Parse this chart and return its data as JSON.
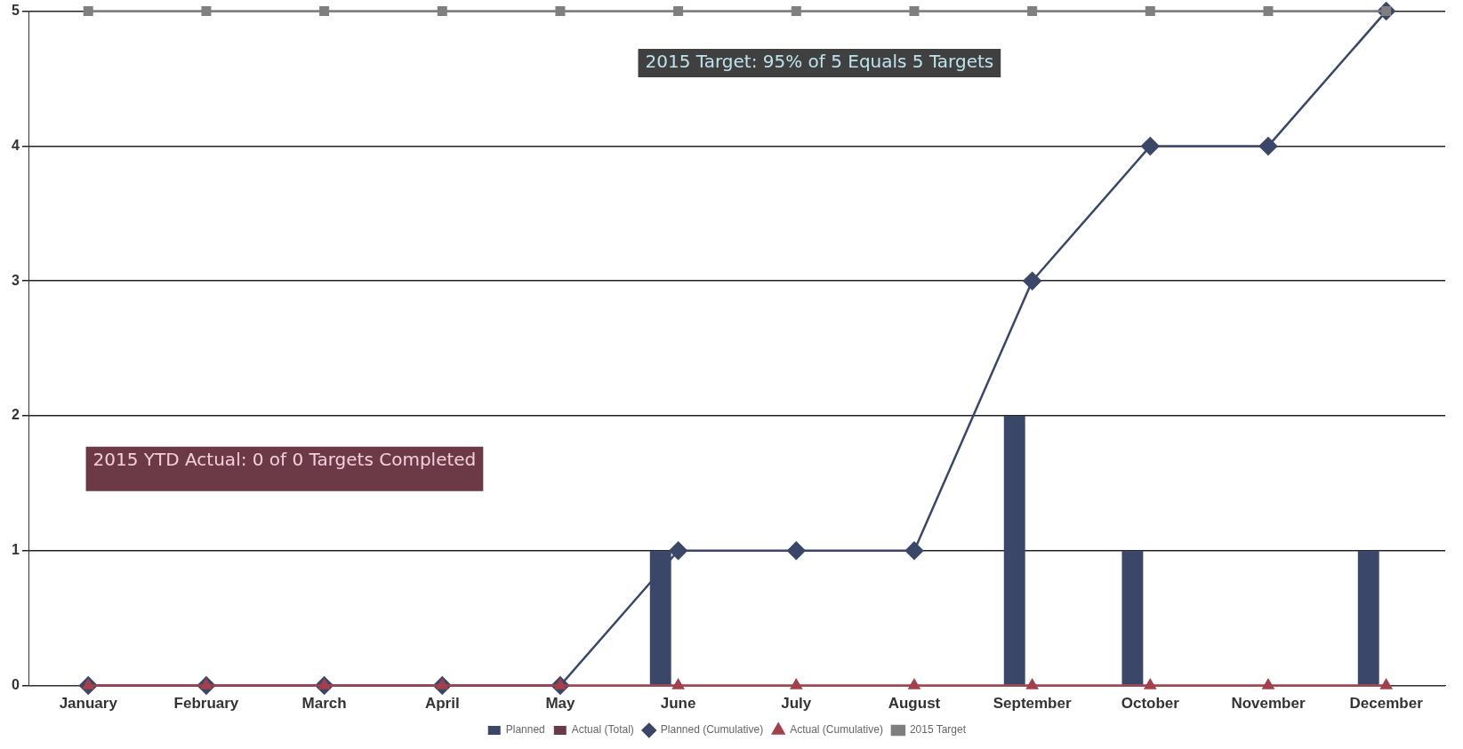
{
  "chart_data": {
    "type": "bar",
    "categories": [
      "January",
      "February",
      "March",
      "April",
      "May",
      "June",
      "July",
      "August",
      "September",
      "October",
      "November",
      "December"
    ],
    "series": [
      {
        "name": "Planned",
        "color": "#3b4768",
        "values": [
          0,
          0,
          0,
          0,
          0,
          1,
          0,
          0,
          2,
          1,
          0,
          1
        ]
      },
      {
        "name": "Actual (Total)",
        "color": "#6b3a46",
        "values": [
          0,
          0,
          0,
          0,
          0,
          0,
          0,
          0,
          0,
          0,
          0,
          0
        ]
      },
      {
        "name": "Planned (Cumulative)",
        "type": "line",
        "color": "#3b4768",
        "marker": "diamond",
        "values": [
          0,
          0,
          0,
          0,
          0,
          1,
          1,
          1,
          3,
          4,
          4,
          5
        ]
      },
      {
        "name": "Actual (Cumulative)",
        "type": "line",
        "color": "#a2404c",
        "marker": "triangle",
        "values": [
          0,
          0,
          0,
          0,
          0,
          0,
          0,
          0,
          0,
          0,
          0,
          0
        ]
      },
      {
        "name": "2015 Target",
        "type": "line",
        "color": "#7f7f7f",
        "marker": "square",
        "values": [
          5,
          5,
          5,
          5,
          5,
          5,
          5,
          5,
          5,
          5,
          5,
          5
        ]
      }
    ],
    "ylim": [
      0,
      5
    ],
    "yticks": [
      0,
      1,
      2,
      3,
      4,
      5
    ],
    "grid": "y",
    "legend": "bottom",
    "annotations": [
      "2015 Target: 95% of 5 Equals 5 Targets",
      "2015 YTD Actual: 0 of 0 Targets Completed"
    ]
  }
}
